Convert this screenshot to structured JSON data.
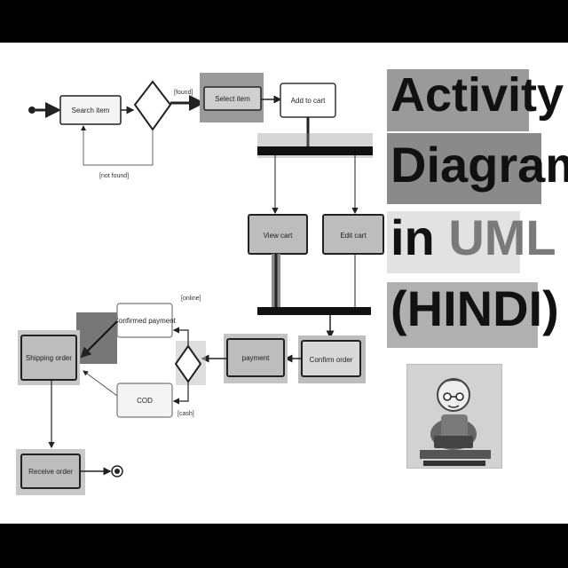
{
  "title": {
    "line1": "Activity",
    "line2": "Diagram",
    "line3_prefix": "in",
    "line3_accent": "UML",
    "line4": "(HINDI)"
  },
  "diagram": {
    "nodes": {
      "n1": "Search item",
      "n2": "Select item",
      "n3": "Add to cart",
      "n4": "View cart",
      "n5": "Edit cart",
      "n6": "payment",
      "n7": "Confirm order",
      "n8": "Confirmed payment",
      "n9": "COD",
      "n10": "Shipping order",
      "n11": "Receive order"
    },
    "labels": {
      "g1": "[found]",
      "g2": "[not found]",
      "g3": "[online]",
      "g4": "[cash]"
    }
  },
  "colors": {
    "accent": "#8a8a8a",
    "node_fill_dark": "#bdbdbd",
    "node_fill_light": "#f4f4f4",
    "bar": "#111111"
  }
}
